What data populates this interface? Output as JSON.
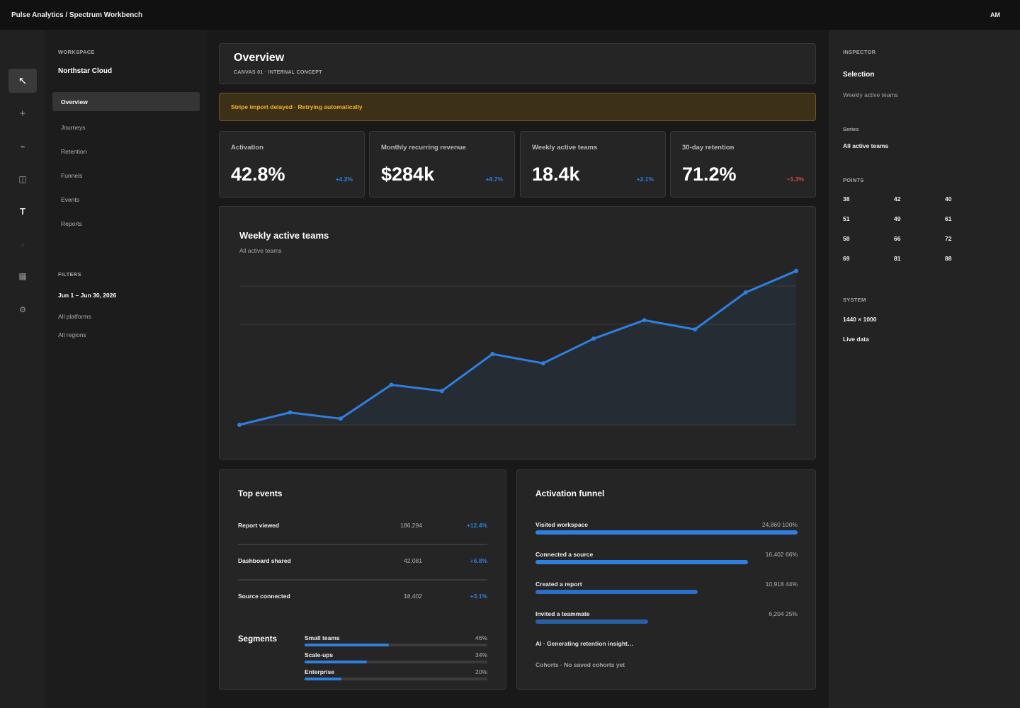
{
  "app": {
    "breadcrumb": "Pulse Analytics / Spectrum Workbench",
    "user_initials": "AM"
  },
  "toolbar": {
    "tools": [
      {
        "name": "pointer-icon",
        "glyph": "↖"
      },
      {
        "name": "plus-icon",
        "glyph": "+"
      },
      {
        "name": "connector-icon",
        "glyph": "⌁"
      },
      {
        "name": "panel-icon",
        "glyph": "◫"
      },
      {
        "name": "text-icon",
        "glyph": "T"
      },
      {
        "name": "circle-icon",
        "glyph": "○"
      },
      {
        "name": "table-icon",
        "glyph": "▦"
      },
      {
        "name": "settings-icon",
        "glyph": "⚙"
      }
    ]
  },
  "sidebar": {
    "workspace_label": "WORKSPACE",
    "workspace_name": "Northstar Cloud",
    "items": [
      {
        "label": "Overview",
        "active": true
      },
      {
        "label": "Journeys"
      },
      {
        "label": "Retention"
      },
      {
        "label": "Funnels"
      },
      {
        "label": "Events"
      },
      {
        "label": "Reports"
      }
    ],
    "filters_label": "FILTERS",
    "date_range": "Jun 1 – Jun 30, 2026",
    "platforms": "All platforms",
    "regions": "All regions"
  },
  "header": {
    "title": "Overview",
    "subtitle": "CANVAS 01 · INTERNAL CONCEPT"
  },
  "alert": {
    "text": "Stripe import delayed · Retrying automatically"
  },
  "kpis": [
    {
      "label": "Activation",
      "value": "42.8%",
      "delta": "+4.2%",
      "positive": true
    },
    {
      "label": "Monthly recurring revenue",
      "value": "$284k",
      "delta": "+8.7%",
      "positive": true
    },
    {
      "label": "Weekly active teams",
      "value": "18.4k",
      "delta": "+2.1%",
      "positive": true
    },
    {
      "label": "30-day retention",
      "value": "71.2%",
      "delta": "−1.3%",
      "positive": false
    }
  ],
  "chart_data": {
    "type": "area",
    "title": "Weekly active teams",
    "subtitle": "All active teams",
    "series": [
      {
        "name": "All active teams",
        "values": [
          38,
          42,
          40,
          51,
          49,
          61,
          58,
          66,
          72,
          69,
          81,
          88
        ]
      }
    ],
    "ylim": [
      38,
      90
    ],
    "grid": true,
    "color": "#2f7fe0"
  },
  "top_events": {
    "title": "Top events",
    "rows": [
      {
        "name": "Report viewed",
        "count": "186,294",
        "delta": "+12.4%"
      },
      {
        "name": "Dashboard shared",
        "count": "42,081",
        "delta": "+6.8%"
      },
      {
        "name": "Source connected",
        "count": "18,402",
        "delta": "+3.1%"
      }
    ]
  },
  "segments": {
    "title": "Segments",
    "rows": [
      {
        "name": "Small teams",
        "pct": "46%",
        "value": 0.46
      },
      {
        "name": "Scale-ups",
        "pct": "34%",
        "value": 0.34
      },
      {
        "name": "Enterprise",
        "pct": "20%",
        "value": 0.2
      }
    ]
  },
  "funnel": {
    "title": "Activation funnel",
    "rows": [
      {
        "name": "Visited workspace",
        "value": "24,860 100%",
        "fraction": 1.0,
        "color": "#2f7fe0"
      },
      {
        "name": "Connected a source",
        "value": "16,402 66%",
        "fraction": 0.81,
        "color": "#2f7fe0"
      },
      {
        "name": "Created a report",
        "value": "10,918 44%",
        "fraction": 0.62,
        "color": "#2a6fc9"
      },
      {
        "name": "Invited a teammate",
        "value": "6,204 25%",
        "fraction": 0.43,
        "color": "#2860a8"
      }
    ],
    "ai_note": "AI · Generating retention insight…",
    "cohorts_note": "Cohorts · No saved cohorts yet"
  },
  "inspector": {
    "label": "INSPECTOR",
    "selection_label": "Selection",
    "selection_value": "Weekly active teams",
    "series_label": "Series",
    "series_value": "All active teams",
    "points_label": "POINTS",
    "points": [
      "38",
      "42",
      "40",
      "51",
      "49",
      "61",
      "58",
      "66",
      "72",
      "69",
      "81",
      "88"
    ],
    "system_label": "SYSTEM",
    "system_size": "1440 × 1000",
    "system_data": "Live data"
  },
  "colors": {
    "accent": "#2f7fe0",
    "negative": "#e5484d",
    "warning": "#f0b429"
  }
}
